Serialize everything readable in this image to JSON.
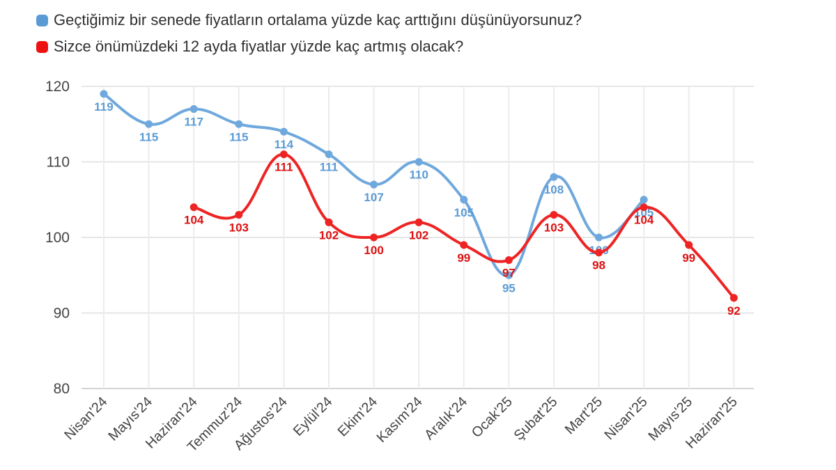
{
  "chart_data": {
    "type": "line",
    "categories": [
      "Nisan'24",
      "Mayıs'24",
      "Haziran'24",
      "Temmuz'24",
      "Ağustos'24",
      "Eylül'24",
      "Ekim'24",
      "Kasım'24",
      "Aralık'24",
      "Ocak'25",
      "Şubat'25",
      "Mart'25",
      "Nisan'25",
      "Mayıs'25",
      "Haziran'25"
    ],
    "series": [
      {
        "name": "Geçtiğimiz bir senede fiyatların ortalama yüzde kaç arttığını düşünüyorsunuz?",
        "color": "#6fa8dc",
        "label_color": "#5b9bd5",
        "values": [
          119,
          115,
          117,
          115,
          114,
          111,
          107,
          110,
          105,
          95,
          108,
          100,
          105,
          null,
          null
        ]
      },
      {
        "name": "Sizce önümüzdeki 12 ayda fiyatlar yüzde kaç artmış olacak?",
        "color": "#ee2424",
        "label_color": "#dd1111",
        "values": [
          null,
          null,
          104,
          103,
          111,
          102,
          100,
          102,
          99,
          97,
          103,
          98,
          104,
          99,
          92
        ]
      }
    ],
    "y_ticks": [
      80,
      90,
      100,
      110,
      120
    ],
    "ylim": [
      80,
      120
    ],
    "title": "",
    "xlabel": "",
    "ylabel": "",
    "grid": true,
    "legend_position": "top-left"
  }
}
